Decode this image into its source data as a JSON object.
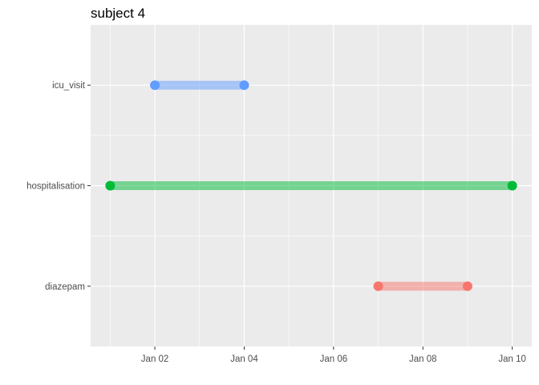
{
  "chart_data": {
    "type": "timeline",
    "title": "subject 4",
    "xlabel": "",
    "ylabel": "",
    "x_tick_labels": [
      "Jan 02",
      "Jan 04",
      "Jan 06",
      "Jan 08",
      "Jan 10"
    ],
    "x_ticks": [
      "2020-01-02",
      "2020-01-04",
      "2020-01-06",
      "2020-01-08",
      "2020-01-10"
    ],
    "xlim": [
      "2019-12-31T13:30",
      "2020-01-10T10:30"
    ],
    "categories": [
      "icu_visit",
      "hospitalisation",
      "diazepam"
    ],
    "segments": [
      {
        "category": "icu_visit",
        "start": "2020-01-02",
        "end": "2020-01-04",
        "color": "#619CFF"
      },
      {
        "category": "hospitalisation",
        "start": "2020-01-01",
        "end": "2020-01-10",
        "color": "#00BA38"
      },
      {
        "category": "diazepam",
        "start": "2020-01-07",
        "end": "2020-01-09",
        "color": "#F8766D"
      }
    ],
    "grid": true,
    "legend": "none",
    "colors": {
      "panel_background": "#EBEBEB",
      "grid_line": "#FFFFFF"
    }
  }
}
